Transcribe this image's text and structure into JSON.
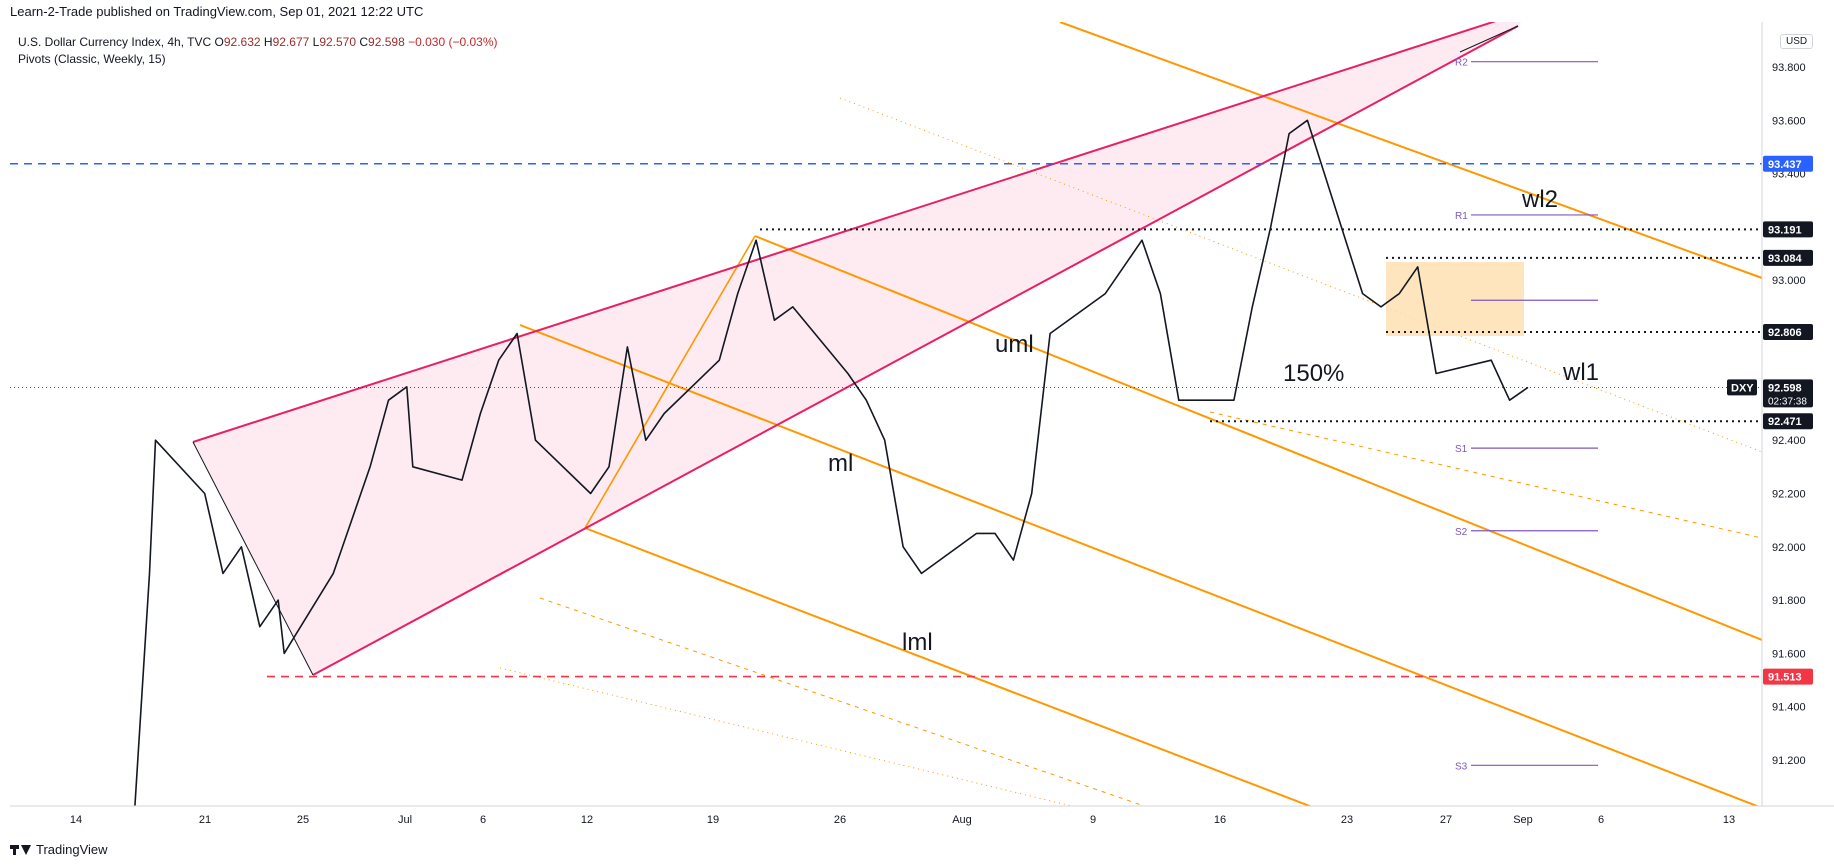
{
  "header": {
    "published": "Learn-2-Trade published on TradingView.com, Sep 01, 2021 12:22 UTC"
  },
  "legend": {
    "symbol": "U.S. Dollar Currency Index, 4h, TVC",
    "open_label": "O",
    "open": "92.632",
    "high_label": "H",
    "high": "92.677",
    "low_label": "L",
    "low": "92.570",
    "close_label": "C",
    "close": "92.598",
    "change": "−0.030 (−0.03%)",
    "indicator": "Pivots (Classic, Weekly, 15)"
  },
  "currency_button": "USD",
  "footer": {
    "brand": "TradingView"
  },
  "colors": {
    "bull": "#ffffff",
    "bear": "#131722",
    "pitchfork": "#ff9800",
    "wedge": "#e91e63",
    "wedge_fill": "#fce4ec",
    "resistance": "#2962ff",
    "support": "#f23645",
    "pivot": "#7e57c2",
    "box": "#ffe0b2"
  },
  "chart_data": {
    "type": "line",
    "instrument": "DXY",
    "timeframe": "4h",
    "ylim": [
      91.05,
      94.0
    ],
    "y_ticks": [
      "93.800",
      "93.600",
      "93.400",
      "93.200",
      "93.000",
      "92.800",
      "92.600",
      "92.400",
      "92.200",
      "92.000",
      "91.800",
      "91.600",
      "91.400",
      "91.200"
    ],
    "x_ticks": [
      "14",
      "21",
      "25",
      "Jul",
      "6",
      "12",
      "19",
      "26",
      "Aug",
      "9",
      "16",
      "23",
      "27",
      "Sep",
      "6",
      "13"
    ],
    "price_levels": [
      {
        "label": "93.437",
        "value": 93.437,
        "style": "dashed",
        "color": "#2962ff"
      },
      {
        "label": "93.191",
        "value": 93.191,
        "style": "dotted",
        "color": "#131722"
      },
      {
        "label": "93.084",
        "value": 93.084,
        "style": "dotted",
        "color": "#131722"
      },
      {
        "label": "92.806",
        "value": 92.806,
        "style": "dotted",
        "color": "#131722"
      },
      {
        "label": "92.471",
        "value": 92.471,
        "style": "dotted",
        "color": "#131722"
      },
      {
        "label": "91.513",
        "value": 91.513,
        "style": "dashed",
        "color": "#f23645"
      }
    ],
    "last_price": {
      "symbol": "DXY",
      "value": "92.598",
      "countdown": "02:37:38"
    },
    "pivots": [
      {
        "name": "R2",
        "value": 93.82
      },
      {
        "name": "R1",
        "value": 93.245
      },
      {
        "name": "P",
        "value": 92.925
      },
      {
        "name": "S1",
        "value": 92.37
      },
      {
        "name": "S2",
        "value": 92.06
      },
      {
        "name": "S3",
        "value": 91.18
      }
    ],
    "annotations": [
      "uml",
      "ml",
      "lml",
      "wl1",
      "wl2",
      "150%"
    ],
    "series": [
      {
        "values": [
          [
            "2021-06-17",
            90.8
          ],
          [
            "2021-06-18",
            91.9
          ],
          [
            "2021-06-18",
            92.4
          ],
          [
            "2021-06-21",
            92.2
          ],
          [
            "2021-06-22",
            91.9
          ],
          [
            "2021-06-23",
            92.0
          ],
          [
            "2021-06-24",
            91.7
          ],
          [
            "2021-06-25",
            91.8
          ],
          [
            "2021-06-25",
            91.6
          ],
          [
            "2021-06-28",
            91.9
          ],
          [
            "2021-06-29",
            92.1
          ],
          [
            "2021-06-30",
            92.3
          ],
          [
            "2021-07-01",
            92.55
          ],
          [
            "2021-07-02",
            92.6
          ],
          [
            "2021-07-02",
            92.3
          ],
          [
            "2021-07-05",
            92.25
          ],
          [
            "2021-07-06",
            92.5
          ],
          [
            "2021-07-07",
            92.7
          ],
          [
            "2021-07-08",
            92.8
          ],
          [
            "2021-07-09",
            92.4
          ],
          [
            "2021-07-12",
            92.2
          ],
          [
            "2021-07-13",
            92.3
          ],
          [
            "2021-07-14",
            92.75
          ],
          [
            "2021-07-15",
            92.4
          ],
          [
            "2021-07-16",
            92.5
          ],
          [
            "2021-07-19",
            92.7
          ],
          [
            "2021-07-20",
            92.95
          ],
          [
            "2021-07-21",
            93.15
          ],
          [
            "2021-07-22",
            92.85
          ],
          [
            "2021-07-23",
            92.9
          ],
          [
            "2021-07-26",
            92.65
          ],
          [
            "2021-07-27",
            92.55
          ],
          [
            "2021-07-28",
            92.4
          ],
          [
            "2021-07-29",
            92.0
          ],
          [
            "2021-07-30",
            91.9
          ],
          [
            "2021-08-02",
            92.05
          ],
          [
            "2021-08-03",
            92.05
          ],
          [
            "2021-08-04",
            91.95
          ],
          [
            "2021-08-05",
            92.2
          ],
          [
            "2021-08-06",
            92.8
          ],
          [
            "2021-08-09",
            92.95
          ],
          [
            "2021-08-10",
            93.05
          ],
          [
            "2021-08-11",
            93.15
          ],
          [
            "2021-08-12",
            92.95
          ],
          [
            "2021-08-13",
            92.55
          ],
          [
            "2021-08-16",
            92.55
          ],
          [
            "2021-08-17",
            92.9
          ],
          [
            "2021-08-18",
            93.2
          ],
          [
            "2021-08-19",
            93.55
          ],
          [
            "2021-08-20",
            93.6
          ],
          [
            "2021-08-23",
            92.95
          ],
          [
            "2021-08-24",
            92.9
          ],
          [
            "2021-08-25",
            92.95
          ],
          [
            "2021-08-26",
            93.05
          ],
          [
            "2021-08-27",
            92.65
          ],
          [
            "2021-08-30",
            92.7
          ],
          [
            "2021-08-31",
            92.55
          ],
          [
            "2021-09-01",
            92.598
          ]
        ]
      }
    ]
  }
}
